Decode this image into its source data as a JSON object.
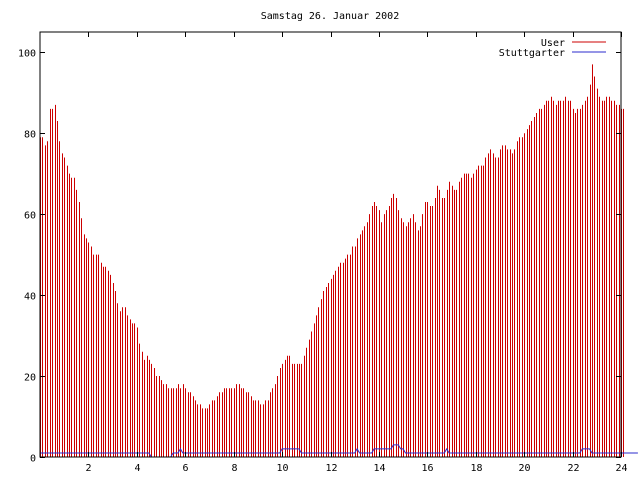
{
  "chart_data": {
    "type": "bar",
    "title": "Samstag 26. Januar 2002",
    "xlabel": "",
    "ylabel": "",
    "xlim": [
      0,
      24
    ],
    "ylim": [
      0,
      105
    ],
    "xticks": [
      2,
      4,
      6,
      8,
      10,
      12,
      14,
      16,
      18,
      20,
      22,
      24
    ],
    "xtick_labels": [
      "2",
      "4",
      "6",
      "8",
      "10",
      "12",
      "14",
      "16",
      "18",
      "20",
      "22",
      "24"
    ],
    "yticks": [
      0,
      20,
      40,
      60,
      80,
      100
    ],
    "ytick_labels": [
      "0",
      "20",
      "40",
      "60",
      "80",
      "100"
    ],
    "grid": false,
    "legend_position": "top-right",
    "series": [
      {
        "name": "User",
        "color": "#cc0000",
        "style": "impulses",
        "step_hours": 0.1,
        "values": [
          79,
          79,
          77,
          78,
          86,
          86,
          87,
          83,
          78,
          75,
          74,
          72,
          70,
          69,
          69,
          66,
          63,
          59,
          55,
          54,
          53,
          52,
          50,
          50,
          50,
          48,
          47,
          47,
          46,
          45,
          43,
          41,
          38,
          36,
          37,
          37,
          35,
          34,
          33,
          33,
          32,
          28,
          26,
          24,
          25,
          24,
          23,
          22,
          20,
          20,
          19,
          18,
          18,
          17,
          17,
          17,
          17,
          18,
          17,
          18,
          17,
          16,
          16,
          15,
          14,
          13,
          13,
          12,
          12,
          12,
          13,
          14,
          14,
          15,
          16,
          16,
          17,
          17,
          17,
          17,
          17,
          18,
          18,
          17,
          17,
          16,
          16,
          15,
          14,
          14,
          14,
          13,
          13,
          14,
          14,
          16,
          17,
          18,
          20,
          22,
          23,
          24,
          25,
          25,
          23,
          23,
          23,
          23,
          23,
          25,
          27,
          29,
          31,
          33,
          35,
          37,
          39,
          41,
          42,
          43,
          44,
          45,
          46,
          47,
          48,
          48,
          49,
          50,
          50,
          52,
          52,
          54,
          55,
          56,
          57,
          58,
          60,
          62,
          63,
          62,
          61,
          58,
          60,
          61,
          62,
          64,
          65,
          64,
          61,
          59,
          58,
          57,
          58,
          59,
          60,
          58,
          56,
          57,
          60,
          63,
          63,
          62,
          62,
          64,
          67,
          66,
          64,
          64,
          66,
          68,
          67,
          66,
          66,
          68,
          69,
          70,
          70,
          70,
          69,
          70,
          71,
          72,
          72,
          72,
          74,
          75,
          76,
          75,
          74,
          74,
          76,
          77,
          77,
          76,
          76,
          75,
          76,
          78,
          79,
          79,
          80,
          81,
          82,
          83,
          84,
          85,
          86,
          86,
          87,
          88,
          88,
          89,
          88,
          87,
          88,
          88,
          88,
          89,
          88,
          88,
          86,
          85,
          86,
          86,
          87,
          88,
          89,
          92,
          97,
          94,
          91,
          89,
          88,
          88,
          89,
          89,
          88,
          88,
          87,
          87,
          86,
          86
        ]
      },
      {
        "name": "Stuttgarter",
        "color": "#2b2bcc",
        "style": "lines",
        "step_hours": 0.1,
        "values": [
          1,
          1,
          1,
          1,
          1,
          1,
          1,
          1,
          1,
          1,
          1,
          1,
          1,
          1,
          1,
          1,
          1,
          1,
          1,
          1,
          1,
          1,
          1,
          1,
          1,
          1,
          1,
          1,
          1,
          1,
          1,
          1,
          1,
          1,
          1,
          1,
          1,
          1,
          1,
          1,
          1,
          1,
          1,
          1,
          1,
          1,
          0,
          0,
          0,
          0,
          0,
          0,
          0,
          0,
          0,
          1,
          1,
          1,
          2,
          1,
          1,
          1,
          1,
          1,
          1,
          1,
          1,
          1,
          1,
          1,
          1,
          1,
          1,
          1,
          1,
          1,
          1,
          1,
          1,
          1,
          1,
          1,
          1,
          1,
          1,
          1,
          1,
          1,
          1,
          1,
          1,
          1,
          1,
          1,
          1,
          1,
          1,
          1,
          1,
          1,
          2,
          2,
          2,
          2,
          2,
          2,
          2,
          2,
          1,
          1,
          1,
          1,
          1,
          1,
          1,
          1,
          1,
          1,
          1,
          1,
          1,
          1,
          1,
          1,
          1,
          1,
          1,
          1,
          1,
          1,
          1,
          2,
          1,
          1,
          1,
          1,
          1,
          1,
          2,
          2,
          2,
          2,
          2,
          2,
          2,
          2,
          3,
          3,
          3,
          2,
          2,
          1,
          1,
          1,
          1,
          1,
          1,
          1,
          1,
          1,
          1,
          1,
          1,
          1,
          1,
          1,
          1,
          1,
          2,
          1,
          1,
          1,
          1,
          1,
          1,
          1,
          1,
          1,
          1,
          1,
          1,
          1,
          1,
          1,
          1,
          1,
          1,
          1,
          1,
          1,
          1,
          1,
          1,
          1,
          1,
          1,
          1,
          1,
          1,
          1,
          1,
          1,
          1,
          1,
          1,
          1,
          1,
          1,
          1,
          1,
          1,
          1,
          1,
          1,
          1,
          1,
          1,
          1,
          1,
          1,
          1,
          1,
          1,
          1,
          2,
          2,
          2,
          2,
          1,
          1,
          1,
          1,
          1,
          1,
          1,
          1,
          1,
          1,
          1,
          1,
          1,
          1,
          1,
          1,
          1,
          1,
          1,
          1
        ]
      }
    ]
  }
}
